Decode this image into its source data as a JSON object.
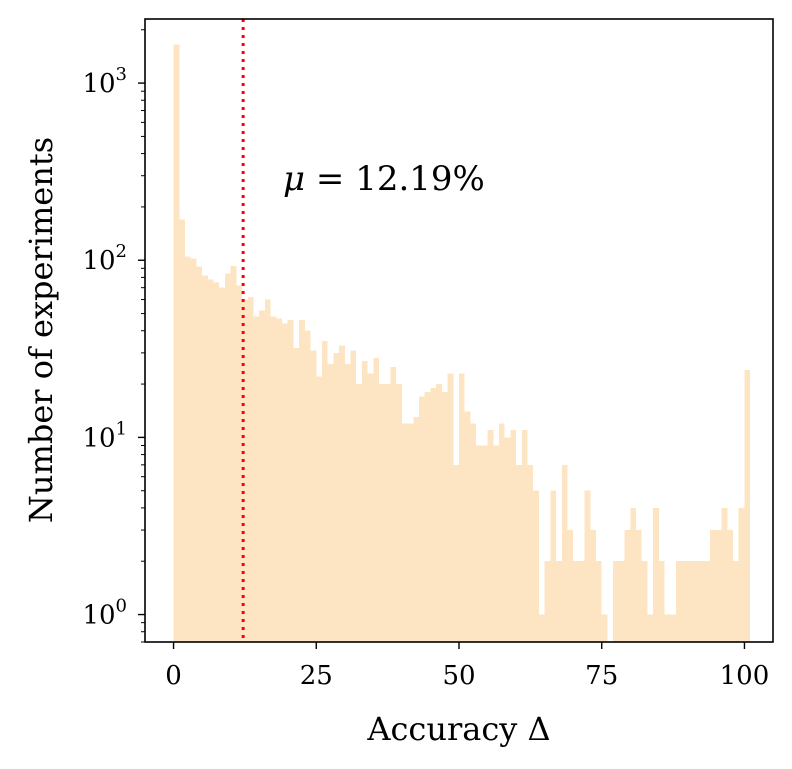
{
  "chart_data": {
    "type": "histogram",
    "title": "",
    "xlabel": "Accuracy Δ",
    "ylabel": "Number of experiments",
    "xlim": [
      -5,
      105
    ],
    "ylim": [
      0.7,
      2300
    ],
    "y_scale": "log",
    "x_ticks": [
      0,
      25,
      50,
      75,
      100
    ],
    "y_ticks": [
      {
        "value": 1,
        "base": "10",
        "exp": "0"
      },
      {
        "value": 10,
        "base": "10",
        "exp": "1"
      },
      {
        "value": 100,
        "base": "10",
        "exp": "2"
      },
      {
        "value": 1000,
        "base": "10",
        "exp": "3"
      }
    ],
    "bin_width": 1,
    "bin_start": 0,
    "bar_color": "#fde5c3",
    "counts": [
      1650,
      170,
      105,
      102,
      92,
      82,
      78,
      75,
      70,
      84,
      93,
      72,
      60,
      62,
      48,
      52,
      60,
      48,
      47,
      44,
      46,
      32,
      46,
      40,
      31,
      22,
      35,
      26,
      30,
      33,
      26,
      31,
      20,
      27,
      23,
      28,
      20,
      20,
      25,
      20,
      12,
      12,
      13,
      17,
      18,
      19,
      20,
      18,
      23,
      7,
      23,
      14,
      12,
      9,
      9,
      11,
      9,
      12,
      10,
      11,
      7,
      11,
      7,
      5,
      1,
      2,
      5,
      2,
      7,
      3,
      2,
      2,
      5,
      3,
      2,
      1,
      0,
      2,
      2,
      3,
      4,
      3,
      2,
      1,
      4,
      2,
      1,
      1,
      2,
      2,
      2,
      2,
      2,
      2,
      3,
      3,
      4,
      3,
      2,
      4,
      24
    ],
    "mean": 12.19,
    "mean_line_color": "#ff0000",
    "annotation": {
      "mu": "μ",
      "text": " = 12.19%"
    }
  }
}
